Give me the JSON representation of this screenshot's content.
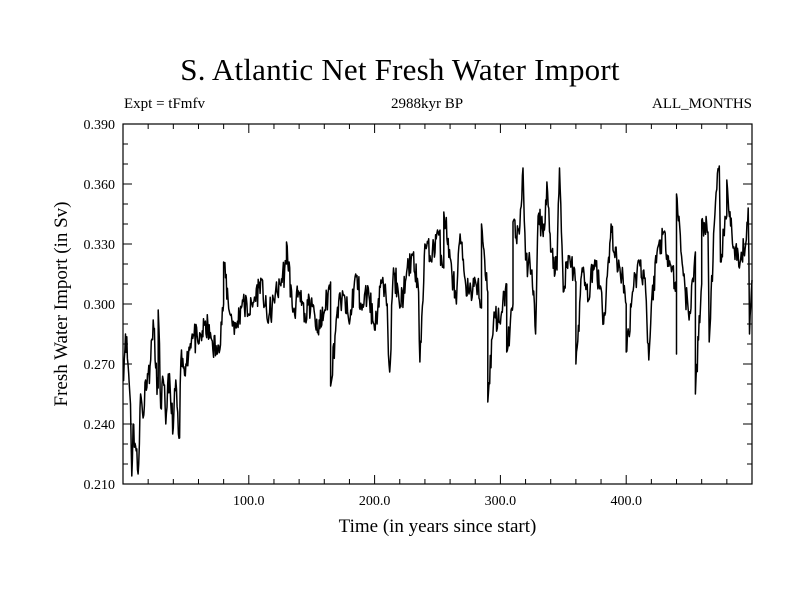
{
  "chart_data": {
    "type": "line",
    "title": "S. Atlantic Net Fresh Water Import",
    "subtitle_left": "Expt = tFmfv",
    "subtitle_center": "2988kyr BP",
    "subtitle_right": "ALL_MONTHS",
    "xlabel": "Time (in years since start)",
    "ylabel": "Fresh Water Import (in Sv)",
    "xlim": [
      0,
      500
    ],
    "ylim": [
      0.21,
      0.39
    ],
    "xticks": [
      100,
      200,
      300,
      400
    ],
    "xtick_labels": [
      "100.0",
      "200.0",
      "300.0",
      "400.0"
    ],
    "yticks": [
      0.21,
      0.24,
      0.27,
      0.3,
      0.33,
      0.36,
      0.39
    ],
    "ytick_labels": [
      "0.210",
      "0.240",
      "0.270",
      "0.300",
      "0.330",
      "0.360",
      "0.390"
    ],
    "series": [
      {
        "name": "Fresh Water Import",
        "x": [
          0,
          2,
          4,
          6,
          8,
          10,
          12,
          14,
          16,
          18,
          20,
          22,
          24,
          26,
          28,
          30,
          32,
          34,
          36,
          38,
          40,
          42,
          44,
          46,
          48,
          50,
          55,
          60,
          65,
          70,
          75,
          80,
          85,
          90,
          95,
          100,
          105,
          110,
          115,
          120,
          125,
          130,
          135,
          140,
          145,
          150,
          155,
          160,
          165,
          170,
          175,
          180,
          185,
          190,
          195,
          200,
          205,
          210,
          215,
          220,
          225,
          230,
          235,
          240,
          245,
          250,
          255,
          260,
          265,
          270,
          275,
          280,
          285,
          290,
          295,
          300,
          305,
          310,
          315,
          320,
          325,
          330,
          335,
          340,
          345,
          350,
          355,
          360,
          365,
          370,
          375,
          380,
          385,
          390,
          395,
          400,
          405,
          410,
          415,
          420,
          425,
          430,
          435,
          440,
          445,
          450,
          455,
          460,
          465,
          470,
          475,
          480,
          485,
          490,
          495,
          500
        ],
        "y": [
          0.262,
          0.285,
          0.27,
          0.25,
          0.24,
          0.229,
          0.215,
          0.255,
          0.243,
          0.262,
          0.265,
          0.272,
          0.292,
          0.268,
          0.258,
          0.248,
          0.262,
          0.24,
          0.265,
          0.25,
          0.238,
          0.262,
          0.235,
          0.272,
          0.268,
          0.27,
          0.285,
          0.28,
          0.29,
          0.283,
          0.275,
          0.3,
          0.295,
          0.288,
          0.302,
          0.295,
          0.303,
          0.312,
          0.291,
          0.302,
          0.31,
          0.32,
          0.296,
          0.305,
          0.292,
          0.303,
          0.286,
          0.296,
          0.311,
          0.295,
          0.305,
          0.29,
          0.315,
          0.297,
          0.308,
          0.287,
          0.312,
          0.3,
          0.318,
          0.298,
          0.313,
          0.325,
          0.306,
          0.33,
          0.322,
          0.337,
          0.318,
          0.323,
          0.3,
          0.322,
          0.305,
          0.312,
          0.298,
          0.306,
          0.296,
          0.29,
          0.31,
          0.3,
          0.335,
          0.322,
          0.317,
          0.344,
          0.337,
          0.326,
          0.317,
          0.306,
          0.324,
          0.311,
          0.318,
          0.302,
          0.322,
          0.308,
          0.314,
          0.326,
          0.318,
          0.3,
          0.306,
          0.322,
          0.313,
          0.3,
          0.328,
          0.336,
          0.32,
          0.308,
          0.318,
          0.292,
          0.326,
          0.31,
          0.336,
          0.34,
          0.321,
          0.344,
          0.328,
          0.318,
          0.33,
          0.312
        ],
        "lows": [
          [
            290,
            0.251
          ],
          [
            45,
            0.233
          ],
          [
            7,
            0.214
          ],
          [
            455,
            0.255
          ],
          [
            165,
            0.259
          ],
          [
            212,
            0.266
          ],
          [
            400,
            0.276
          ],
          [
            236,
            0.271
          ],
          [
            305,
            0.276
          ],
          [
            360,
            0.27
          ],
          [
            418,
            0.272
          ],
          [
            440,
            0.275
          ],
          [
            498,
            0.285
          ],
          [
            328,
            0.285
          ],
          [
            382,
            0.29
          ],
          [
            466,
            0.281
          ]
        ],
        "highs": [
          [
            318,
            0.368
          ],
          [
            474,
            0.369
          ],
          [
            255,
            0.346
          ],
          [
            347,
            0.368
          ],
          [
            337,
            0.361
          ],
          [
            310,
            0.341
          ],
          [
            440,
            0.355
          ],
          [
            480,
            0.362
          ],
          [
            268,
            0.335
          ],
          [
            285,
            0.34
          ],
          [
            388,
            0.34
          ],
          [
            460,
            0.342
          ],
          [
            497,
            0.348
          ],
          [
            80,
            0.321
          ],
          [
            130,
            0.331
          ],
          [
            28,
            0.297
          ]
        ]
      }
    ]
  }
}
